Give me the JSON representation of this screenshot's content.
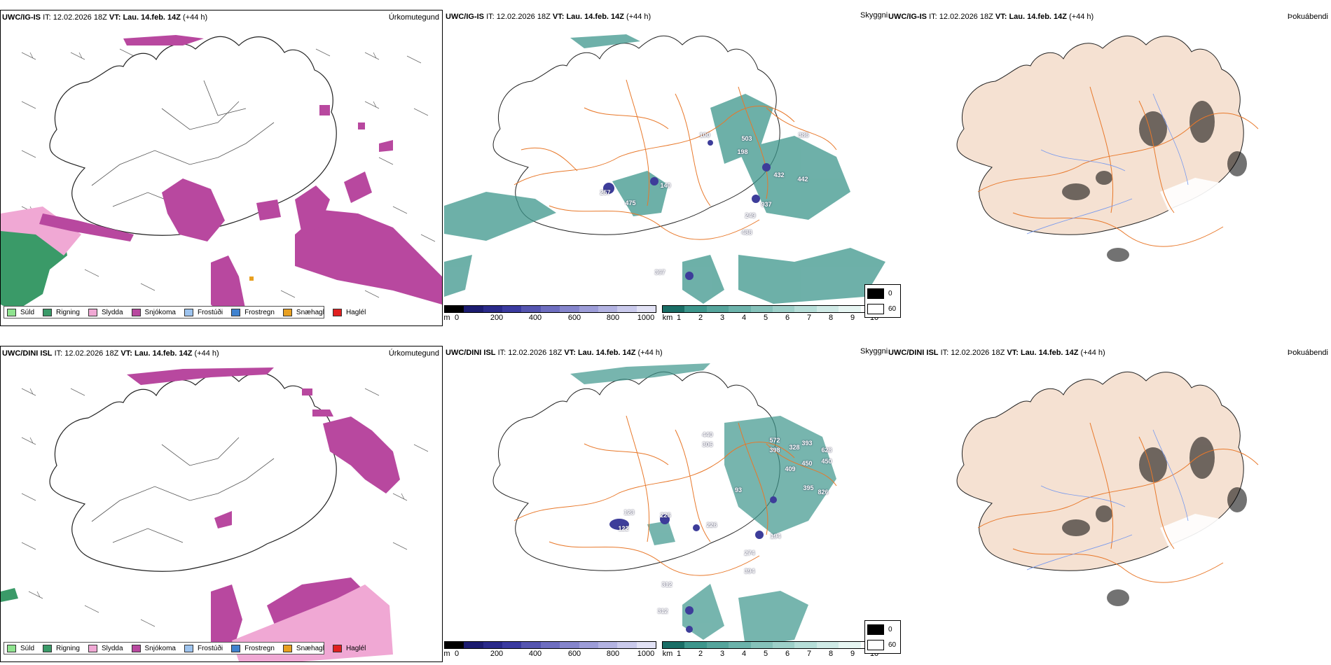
{
  "colors": {
    "sea_bg": "#ffffff",
    "land_beige": "#f5e1d2",
    "road_orange": "#e8782a",
    "coast": "#222222",
    "precip_green": "#3a9a68",
    "precip_pink": "#e39ad0",
    "precip_magenta": "#b8489f",
    "teal": "#3d968c",
    "hgt_blue": "#3d3d9a"
  },
  "row1": {
    "panel1": {
      "model": "UWC/IG-IS",
      "init_label": "IT:",
      "init": "12.02.2026 18Z",
      "valid_label": "VT:",
      "valid": "Lau. 14.feb. 14Z",
      "lead": "(+44 h)",
      "field": "Úrkomutegund"
    },
    "panel2": {
      "model": "UWC/IG-IS",
      "init_label": "IT:",
      "init": "12.02.2026 18Z",
      "valid_label": "VT:",
      "valid": "Lau. 14.feb. 14Z",
      "lead": "(+44 h)",
      "field": "Skyggni",
      "cloud_base_labels": [
        "257",
        "475",
        "140",
        "100",
        "503",
        "198",
        "432",
        "442",
        "937",
        "249",
        "488",
        "386",
        "367"
      ]
    },
    "panel3": {
      "model": "UWC/IG-IS",
      "init_label": "IT:",
      "init": "12.02.2026 18Z",
      "valid_label": "VT:",
      "valid": "Lau. 14.feb. 14Z",
      "lead": "(+44 h)",
      "field": "Þokuábendi"
    }
  },
  "row2": {
    "panel1": {
      "model": "UWC/DINI ISL",
      "init_label": "IT:",
      "init": "12.02.2026 18Z",
      "valid_label": "VT:",
      "valid": "Lau. 14.feb. 14Z",
      "lead": "(+44 h)",
      "field": "Úrkomutegund"
    },
    "panel2": {
      "model": "UWC/DINI ISL",
      "init_label": "IT:",
      "init": "12.02.2026 18Z",
      "valid_label": "VT:",
      "valid": "Lau. 14.feb. 14Z",
      "lead": "(+44 h)",
      "field": "Skyggni",
      "cloud_base_labels": [
        "440",
        "306",
        "572",
        "398",
        "393",
        "328",
        "628",
        "450",
        "409",
        "450",
        "395",
        "826",
        "93",
        "123",
        "122",
        "226",
        "226",
        "194",
        "274",
        "394",
        "312",
        "312"
      ]
    },
    "panel3": {
      "model": "UWC/DINI ISL",
      "init_label": "IT:",
      "init": "12.02.2026 18Z",
      "valid_label": "VT:",
      "valid": "Lau. 14.feb. 14Z",
      "lead": "(+44 h)",
      "field": "Þokuábendi"
    }
  },
  "precip_legend": [
    {
      "label": "Súld",
      "color": "#8fe38f"
    },
    {
      "label": "Rigning",
      "color": "#3a9a68"
    },
    {
      "label": "Slydda",
      "color": "#f0a8d4"
    },
    {
      "label": "Snjókoma",
      "color": "#b8489f"
    },
    {
      "label": "Frostúði",
      "color": "#9dc3ee"
    },
    {
      "label": "Frostregn",
      "color": "#3f82cf"
    },
    {
      "label": "Snæhagl",
      "color": "#e8a020"
    },
    {
      "label": "Haglél",
      "color": "#e02020"
    }
  ],
  "height_bar": {
    "unit": "m",
    "ticks": [
      "0",
      "200",
      "400",
      "600",
      "800",
      "1000"
    ],
    "colors": [
      "#000000",
      "#1c1c70",
      "#2a2a8a",
      "#3b3ba0",
      "#5555b0",
      "#6e6ec0",
      "#8585cc",
      "#9d9dd8",
      "#b3b3e2",
      "#cacaec",
      "#e2e2f5"
    ]
  },
  "vis_bar": {
    "unit": "km",
    "ticks": [
      "1",
      "2",
      "3",
      "4",
      "5",
      "6",
      "7",
      "8",
      "9",
      "10"
    ],
    "colors": [
      "#1a6e66",
      "#3d968c",
      "#55a59c",
      "#6cb3ab",
      "#85c2ba",
      "#9dd0c9",
      "#b6ded8",
      "#cfeae6",
      "#e6f5f2",
      "#ffffff"
    ]
  },
  "fog_legend": [
    {
      "label": "0",
      "color": "#000000"
    },
    {
      "label": "60",
      "color": "#ffffff"
    }
  ]
}
